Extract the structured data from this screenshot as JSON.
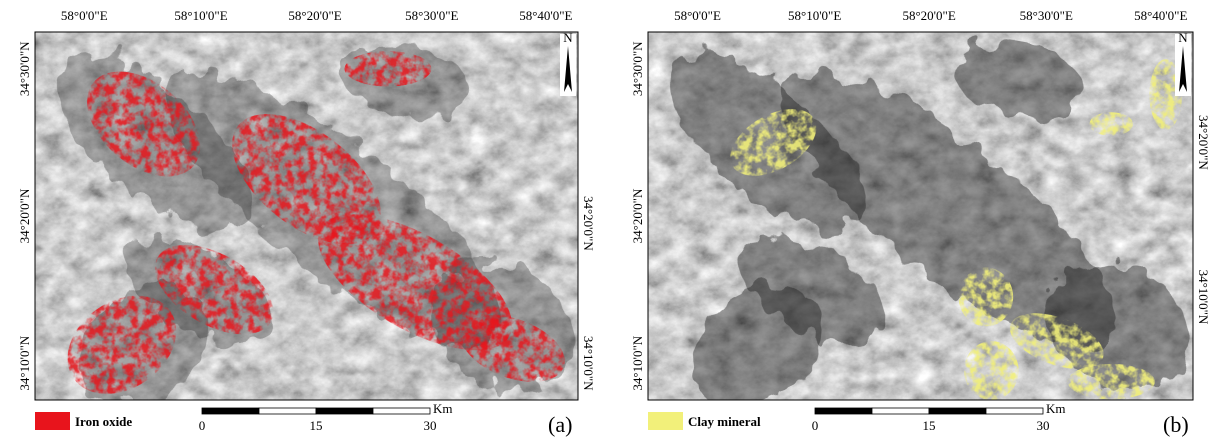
{
  "panels": [
    {
      "lon_labels": [
        "58°0'0\"E",
        "58°10'0\"E",
        "58°20'0\"E",
        "58°30'0\"E",
        "58°40'0\"E"
      ],
      "lat_left_labels": [
        "34°30'0\"N",
        "34°20'0\"N",
        "34°10'0\"N"
      ],
      "lat_right_labels": [
        "34°20'0\"N",
        "34°10'0\"N"
      ],
      "north": "N",
      "legend": "Iron oxide",
      "scale_labels": [
        "0",
        "15",
        "30"
      ],
      "scale_unit": "Km",
      "letter": "(a)"
    },
    {
      "lon_labels": [
        "58°0'0\"E",
        "58°10'0\"E",
        "58°20'0\"E",
        "58°30'0\"E",
        "58°40'0\"E"
      ],
      "lat_left_labels": [
        "34°30'0\"N",
        "34°20'0\"N",
        "34°10'0\"N"
      ],
      "lat_right_labels": [
        "34°20'0\"N",
        "34°10'0\"N"
      ],
      "north": "N",
      "legend": "Clay mineral",
      "scale_labels": [
        "0",
        "15",
        "30"
      ],
      "scale_unit": "Km",
      "letter": "(b)"
    }
  ]
}
